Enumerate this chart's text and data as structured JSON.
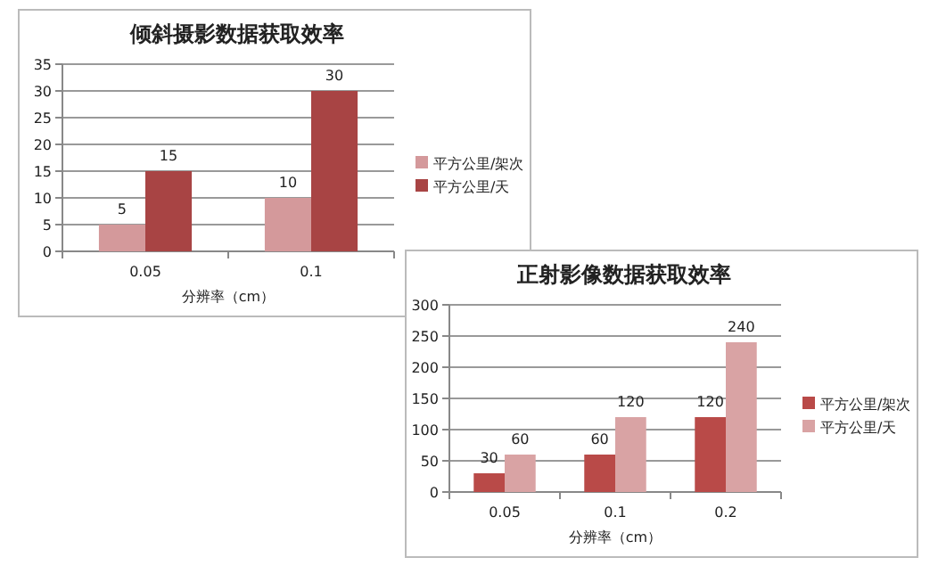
{
  "chart_data": [
    {
      "type": "bar",
      "title": "倾斜摄影数据获取效率",
      "xlabel": "分辨率（cm）",
      "categories": [
        "0.05",
        "0.1"
      ],
      "ylim": [
        0,
        35
      ],
      "yticks": [
        0,
        5,
        10,
        15,
        20,
        25,
        30,
        35
      ],
      "grid": "y",
      "legend": "right",
      "data_labels": true,
      "series": [
        {
          "name": "平方公里/架次",
          "color": "#d4999b",
          "values": [
            5,
            10
          ]
        },
        {
          "name": "平方公里/天",
          "color": "#a84444",
          "values": [
            15,
            30
          ]
        }
      ]
    },
    {
      "type": "bar",
      "title": "正射影像数据获取效率",
      "xlabel": "分辨率（cm）",
      "categories": [
        "0.05",
        "0.1",
        "0.2"
      ],
      "ylim": [
        0,
        300
      ],
      "yticks": [
        0,
        50,
        100,
        150,
        200,
        250,
        300
      ],
      "grid": "y",
      "legend": "right",
      "data_labels": true,
      "series": [
        {
          "name": "平方公里/架次",
          "color": "#b94a48",
          "values": [
            30,
            60,
            120
          ]
        },
        {
          "name": "平方公里/天",
          "color": "#d9a3a4",
          "values": [
            60,
            120,
            240
          ]
        }
      ]
    }
  ]
}
